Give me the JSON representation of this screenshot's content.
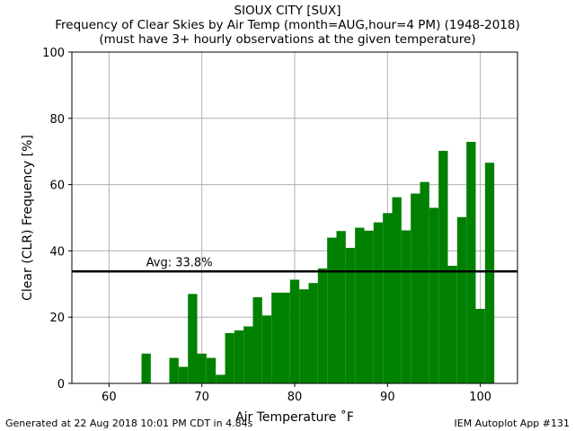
{
  "chart_data": {
    "type": "bar",
    "title": "SIOUX CITY [SUX]",
    "subtitle": "Frequency of Clear Skies by Air Temp (month=AUG,hour=4 PM) (1948-2018)",
    "subtitle2": "(must have 3+ hourly observations at the given temperature)",
    "xlabel": "Air Temperature ˚F",
    "ylabel": "Clear (CLR) Frequency [%]",
    "xlim": [
      56,
      104
    ],
    "ylim": [
      0,
      100
    ],
    "xticks": [
      60,
      70,
      80,
      90,
      100
    ],
    "yticks": [
      0,
      20,
      40,
      60,
      80,
      100
    ],
    "grid": true,
    "bar_color": "#008000",
    "average": {
      "value": 33.8,
      "label": "Avg: 33.8%",
      "color": "#000000"
    },
    "x": [
      59,
      60,
      61,
      62,
      63,
      64,
      65,
      66,
      67,
      68,
      69,
      70,
      71,
      72,
      73,
      74,
      75,
      76,
      77,
      78,
      79,
      80,
      81,
      82,
      83,
      84,
      85,
      86,
      87,
      88,
      89,
      90,
      91,
      92,
      93,
      94,
      95,
      96,
      97,
      98,
      99,
      100,
      101
    ],
    "values": [
      0,
      0,
      0,
      0,
      0,
      9,
      0,
      0,
      7.7,
      5,
      27,
      9,
      7.7,
      2.6,
      15.2,
      16,
      17.2,
      26,
      20.5,
      27.4,
      27.4,
      31.3,
      28.4,
      30.3,
      34.7,
      44,
      46,
      40.9,
      47,
      46.1,
      48.6,
      51.4,
      56.2,
      46.2,
      57.3,
      60.8,
      53,
      70.2,
      35.5,
      50.2,
      72.9,
      22.5,
      66.6
    ]
  },
  "footer": {
    "left": "Generated at 22 Aug 2018 10:01 PM CDT in 4.84s",
    "right": "IEM Autoplot App #131"
  }
}
